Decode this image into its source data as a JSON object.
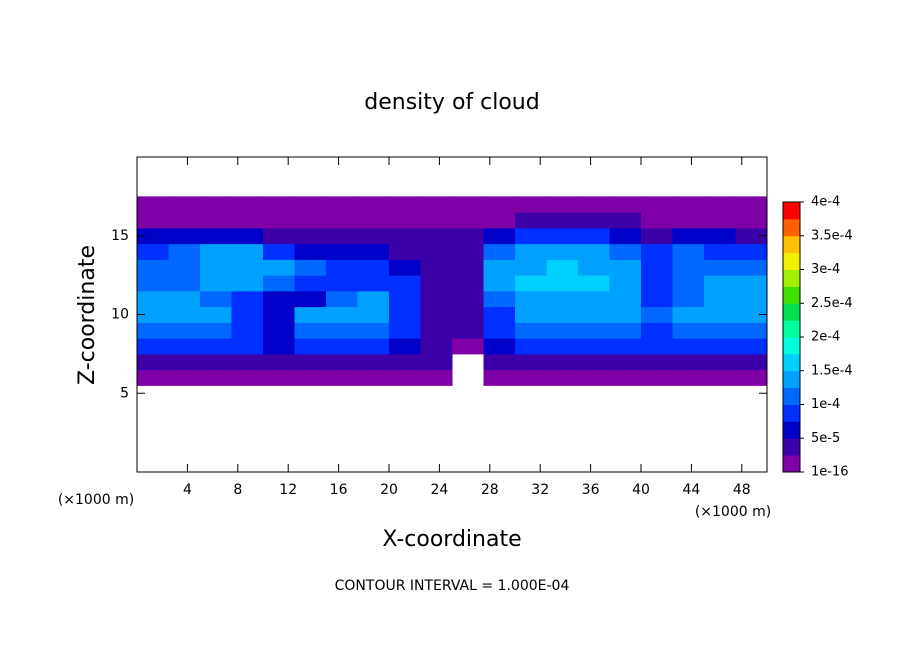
{
  "chart_data": {
    "type": "contour",
    "title": "density of cloud",
    "xlabel": "X-coordinate",
    "ylabel": "Z-coordinate",
    "x_unit_left": "(×1000 m)",
    "x_unit_right": "(×1000 m)",
    "footnote": "CONTOUR INTERVAL = 1.000E-04",
    "xlim": [
      0,
      50
    ],
    "ylim": [
      0,
      20
    ],
    "xticks": [
      4,
      8,
      12,
      16,
      20,
      24,
      28,
      32,
      36,
      40,
      44,
      48
    ],
    "yticks": [
      5,
      10,
      15
    ],
    "x": [
      1.25,
      3.75,
      6.25,
      8.75,
      11.25,
      13.75,
      16.25,
      18.75,
      21.25,
      23.75,
      26.25,
      28.75,
      31.25,
      33.75,
      36.25,
      38.75,
      41.25,
      43.75,
      46.25,
      48.75
    ],
    "y": [
      6,
      7,
      8,
      9,
      10,
      11,
      12,
      13,
      14,
      15,
      16,
      17
    ],
    "z": [
      [
        2e-05,
        2e-05,
        2e-05,
        2e-05,
        2e-05,
        2e-05,
        2e-05,
        2e-05,
        2e-05,
        1e-05,
        0,
        2e-05,
        2e-05,
        2e-05,
        2e-05,
        2e-05,
        2e-05,
        2e-05,
        2e-05,
        2e-05
      ],
      [
        5e-05,
        5e-05,
        5e-05,
        5e-05,
        5e-05,
        5e-05,
        5e-05,
        5e-05,
        5e-05,
        3e-05,
        0,
        5e-05,
        5e-05,
        5e-05,
        5e-05,
        5e-05,
        5e-05,
        5e-05,
        5e-05,
        5e-05
      ],
      [
        0.0001,
        0.0001,
        9e-05,
        9e-05,
        7e-05,
        9e-05,
        9e-05,
        9e-05,
        6e-05,
        3e-05,
        2e-05,
        7e-05,
        9e-05,
        9e-05,
        9e-05,
        9e-05,
        9e-05,
        9e-05,
        9e-05,
        9e-05
      ],
      [
        0.00012,
        0.00012,
        0.00011,
        8e-05,
        6e-05,
        0.00012,
        0.00012,
        0.00012,
        8e-05,
        4e-05,
        3e-05,
        8e-05,
        0.00012,
        0.00012,
        0.00012,
        0.00012,
        0.0001,
        0.00011,
        0.00012,
        0.00012
      ],
      [
        0.00015,
        0.00015,
        0.00013,
        9e-05,
        6e-05,
        0.00013,
        0.00015,
        0.00015,
        9e-05,
        5e-05,
        4e-05,
        0.0001,
        0.00014,
        0.00014,
        0.00014,
        0.00014,
        0.00012,
        0.00014,
        0.00015,
        0.00015
      ],
      [
        0.00013,
        0.00013,
        0.00012,
        0.0001,
        7e-05,
        6e-05,
        0.00012,
        0.00013,
        8e-05,
        5e-05,
        4e-05,
        0.00012,
        0.00015,
        0.00015,
        0.00015,
        0.00014,
        0.0001,
        0.00011,
        0.00014,
        0.00014
      ],
      [
        0.00012,
        0.00012,
        0.00013,
        0.00013,
        0.00011,
        8e-05,
        0.0001,
        0.0001,
        8e-05,
        5e-05,
        3e-05,
        0.00014,
        0.00016,
        0.00016,
        0.00016,
        0.00015,
        8e-05,
        0.00012,
        0.00013,
        0.00013
      ],
      [
        0.00012,
        0.00012,
        0.00014,
        0.00014,
        0.00013,
        0.00012,
        0.0001,
        9e-05,
        6e-05,
        4e-05,
        5e-05,
        0.00013,
        0.00015,
        0.00016,
        0.00015,
        0.00014,
        9e-05,
        0.00012,
        0.00012,
        0.00012
      ],
      [
        0.0001,
        0.00011,
        0.00013,
        0.00013,
        9e-05,
        7e-05,
        6e-05,
        6e-05,
        5e-05,
        4e-05,
        5e-05,
        0.00011,
        0.00013,
        0.00013,
        0.00013,
        0.00012,
        9e-05,
        0.00011,
        0.0001,
        9e-05
      ],
      [
        6e-05,
        6e-05,
        7e-05,
        7e-05,
        5e-05,
        4e-05,
        4e-05,
        4e-05,
        4e-05,
        3e-05,
        4e-05,
        6e-05,
        8e-05,
        8e-05,
        8e-05,
        7e-05,
        5e-05,
        6e-05,
        6e-05,
        5e-05
      ],
      [
        2e-05,
        2e-05,
        2e-05,
        2e-05,
        2e-05,
        2e-05,
        2e-05,
        2e-05,
        2e-05,
        2e-05,
        2e-05,
        2e-05,
        3e-05,
        3e-05,
        3e-05,
        3e-05,
        2e-05,
        2e-05,
        2e-05,
        2e-05
      ],
      [
        1e-05,
        1e-05,
        1e-05,
        1e-05,
        1e-05,
        1e-05,
        1e-05,
        1e-05,
        1e-05,
        1e-05,
        1e-05,
        1e-05,
        1e-05,
        1e-05,
        1e-05,
        1e-05,
        1e-05,
        1e-05,
        1e-05,
        1e-05
      ]
    ],
    "clim": [
      1e-16,
      0.0004
    ],
    "colors": [
      "#8000a8",
      "#3c00a8",
      "#0000c8",
      "#0030ff",
      "#0068ff",
      "#00a0ff",
      "#00d0ff",
      "#00ffe0",
      "#00ffa0",
      "#00e050",
      "#40e000",
      "#a0f000",
      "#f0f000",
      "#ffc000",
      "#ff6000",
      "#ff0000"
    ],
    "top_color": "#ff9090",
    "cticks": [
      {
        "value": 1e-16,
        "label": "1e-16"
      },
      {
        "value": 5e-05,
        "label": "5e-5"
      },
      {
        "value": 0.0001,
        "label": "1e-4"
      },
      {
        "value": 0.00015,
        "label": "1.5e-4"
      },
      {
        "value": 0.0002,
        "label": "2e-4"
      },
      {
        "value": 0.00025,
        "label": "2.5e-4"
      },
      {
        "value": 0.0003,
        "label": "3e-4"
      },
      {
        "value": 0.00035,
        "label": "3.5e-4"
      },
      {
        "value": 0.0004,
        "label": "4e-4"
      }
    ]
  }
}
